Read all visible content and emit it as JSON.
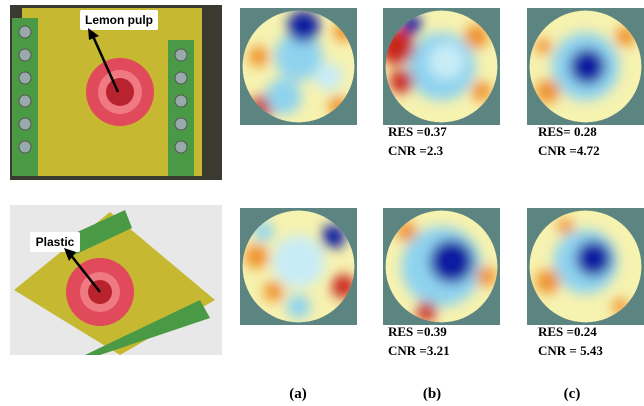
{
  "photo_labels": [
    "Lemon pulp",
    "Plastic"
  ],
  "rows": [
    {
      "b": {
        "res": "RES =0.37",
        "cnr": "CNR =2.3"
      },
      "c": {
        "res": "RES= 0.28",
        "cnr": "CNR =4.72"
      }
    },
    {
      "b": {
        "res": "RES =0.39",
        "cnr": "CNR =3.21"
      },
      "c": {
        "res": "RES =0.24",
        "cnr": "CNR = 5.43"
      }
    }
  ],
  "column_labels": [
    "(a)",
    "(b)",
    "(c)"
  ]
}
